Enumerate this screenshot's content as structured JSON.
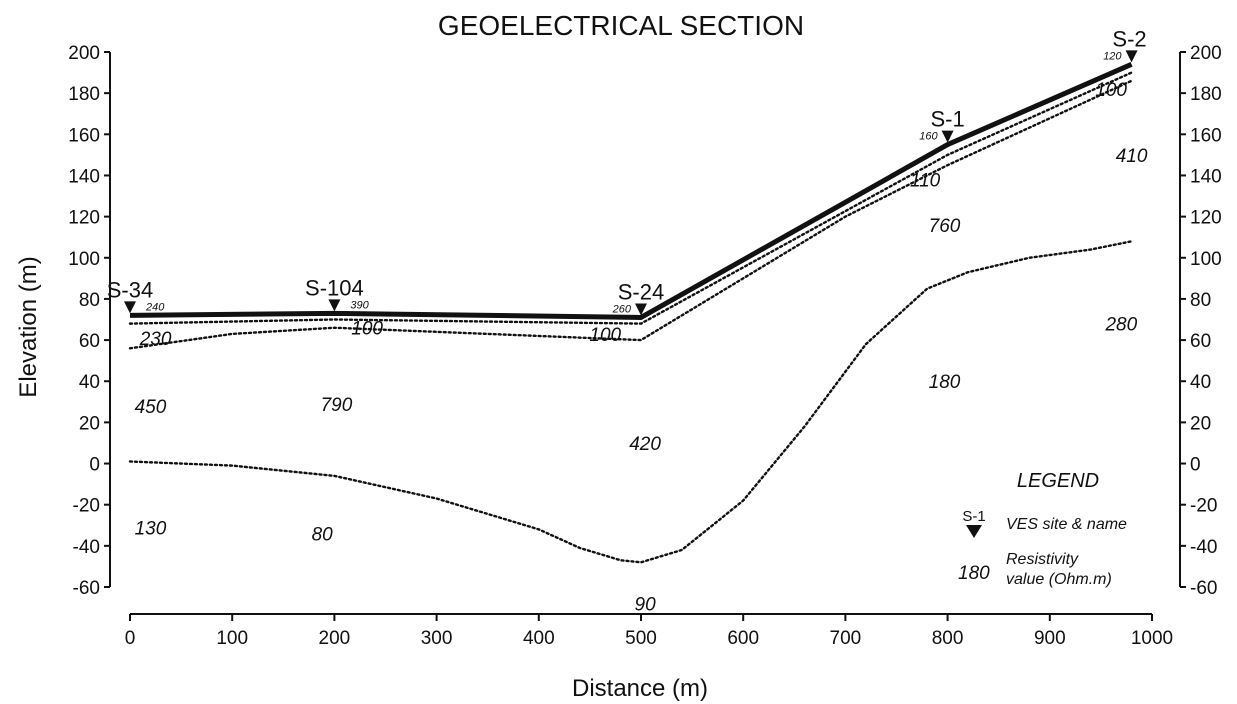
{
  "chart_data": {
    "type": "line",
    "title": "GEOELECTRICAL SECTION",
    "xlabel": "Distance (m)",
    "ylabel": "Elevation (m)",
    "xlim": [
      0,
      1000
    ],
    "ylim": [
      -60,
      200
    ],
    "x_ticks": [
      "0",
      "100",
      "200",
      "300",
      "400",
      "500",
      "600",
      "700",
      "800",
      "900",
      "1000"
    ],
    "y_ticks": [
      "200",
      "180",
      "160",
      "140",
      "120",
      "100",
      "80",
      "60",
      "40",
      "20",
      "0",
      "-20",
      "-40",
      "-60"
    ],
    "grid": false,
    "surface": {
      "style": "solid-thick",
      "x": [
        0,
        200,
        500,
        800,
        980
      ],
      "y": [
        72,
        73,
        71,
        155,
        194
      ]
    },
    "boundaries": [
      {
        "style": "dotted",
        "x": [
          0,
          200,
          500,
          800,
          980
        ],
        "y": [
          68,
          70,
          68,
          150,
          190
        ]
      },
      {
        "style": "dotted",
        "x": [
          0,
          100,
          200,
          350,
          450,
          500,
          700,
          800,
          980
        ],
        "y": [
          56,
          63,
          66,
          63,
          61,
          60,
          120,
          145,
          186
        ]
      },
      {
        "style": "dotted",
        "x": [
          0,
          100,
          200,
          300,
          400,
          440,
          480,
          500,
          540,
          600,
          660,
          720,
          780,
          820,
          880,
          940,
          980
        ],
        "y": [
          1,
          -1,
          -6,
          -17,
          -32,
          -41,
          -47,
          -48,
          -42,
          -18,
          18,
          58,
          85,
          93,
          100,
          104,
          108
        ]
      }
    ],
    "ves_sites": [
      {
        "name": "S-34",
        "x": 0,
        "y": 72,
        "surface_value": "240"
      },
      {
        "name": "S-104",
        "x": 200,
        "y": 73,
        "surface_value": "390"
      },
      {
        "name": "S-24",
        "x": 500,
        "y": 71,
        "surface_value": "260"
      },
      {
        "name": "S-1",
        "x": 800,
        "y": 155,
        "surface_value": "160"
      },
      {
        "name": "S-2",
        "x": 980,
        "y": 194,
        "surface_value": "120"
      }
    ],
    "resistivity_labels": [
      {
        "text": "230",
        "x": 25,
        "y": 61
      },
      {
        "text": "100",
        "x": 232,
        "y": 66
      },
      {
        "text": "100",
        "x": 465,
        "y": 63
      },
      {
        "text": "110",
        "x": 778,
        "y": 138
      },
      {
        "text": "100",
        "x": 960,
        "y": 182
      },
      {
        "text": "410",
        "x": 980,
        "y": 150
      },
      {
        "text": "450",
        "x": 20,
        "y": 28
      },
      {
        "text": "790",
        "x": 202,
        "y": 29
      },
      {
        "text": "420",
        "x": 504,
        "y": 10
      },
      {
        "text": "760",
        "x": 797,
        "y": 116
      },
      {
        "text": "280",
        "x": 970,
        "y": 68
      },
      {
        "text": "180",
        "x": 797,
        "y": 40
      },
      {
        "text": "130",
        "x": 20,
        "y": -31
      },
      {
        "text": "80",
        "x": 188,
        "y": -34
      },
      {
        "text": "90",
        "x": 504,
        "y": -68
      }
    ]
  },
  "legend": {
    "title": "LEGEND",
    "site_symbol_label": "S-1",
    "site_text": "VES site & name",
    "value_sample": "180",
    "value_text_line1": "Resistivity",
    "value_text_line2": "value (Ohm.m)"
  }
}
